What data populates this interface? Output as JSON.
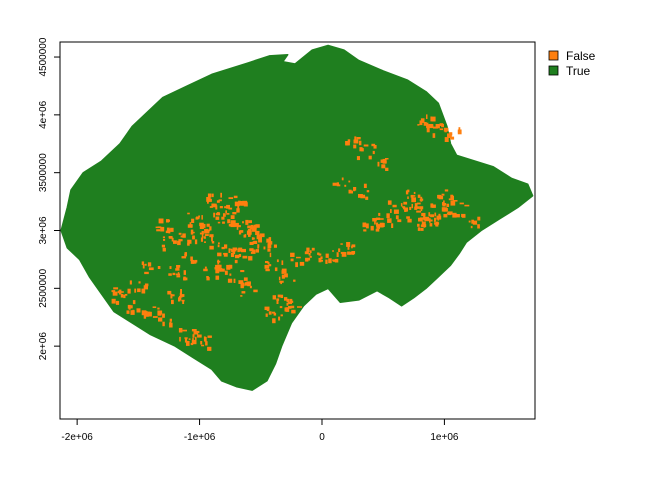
{
  "chart_data": {
    "type": "raster-map",
    "title": "",
    "xlabel": "",
    "ylabel": "",
    "xlim": [
      -2140000,
      1740000
    ],
    "ylim": [
      1370000,
      4630000
    ],
    "x_ticks": [
      {
        "value": -2000000,
        "label": "-2e+06"
      },
      {
        "value": -1000000,
        "label": "-1e+06"
      },
      {
        "value": 0,
        "label": "0"
      },
      {
        "value": 1000000,
        "label": "1e+06"
      }
    ],
    "y_ticks": [
      {
        "value": 2000000,
        "label": "2e+06"
      },
      {
        "value": 2500000,
        "label": "2500000"
      },
      {
        "value": 3000000,
        "label": "3e+06"
      },
      {
        "value": 3500000,
        "label": "3500000"
      },
      {
        "value": 4000000,
        "label": "4e+06"
      },
      {
        "value": 4500000,
        "label": "4500000"
      }
    ],
    "legend": {
      "position": "top-right",
      "items": [
        {
          "label": "False",
          "color": "#ff7f0e"
        },
        {
          "label": "True",
          "color": "#1f7f1f"
        }
      ]
    },
    "region_outline": [
      [
        -2130000,
        3000000
      ],
      [
        -2080000,
        3200000
      ],
      [
        -2050000,
        3350000
      ],
      [
        -1950000,
        3500000
      ],
      [
        -1800000,
        3600000
      ],
      [
        -1650000,
        3750000
      ],
      [
        -1550000,
        3900000
      ],
      [
        -1400000,
        4050000
      ],
      [
        -1300000,
        4150000
      ],
      [
        -1100000,
        4250000
      ],
      [
        -900000,
        4350000
      ],
      [
        -600000,
        4450000
      ],
      [
        -430000,
        4510000
      ],
      [
        -280000,
        4520000
      ],
      [
        -320000,
        4460000
      ],
      [
        -220000,
        4440000
      ],
      [
        -80000,
        4560000
      ],
      [
        50000,
        4600000
      ],
      [
        180000,
        4560000
      ],
      [
        300000,
        4470000
      ],
      [
        500000,
        4380000
      ],
      [
        700000,
        4300000
      ],
      [
        850000,
        4200000
      ],
      [
        950000,
        4100000
      ],
      [
        1020000,
        3900000
      ],
      [
        1050000,
        3750000
      ],
      [
        1100000,
        3650000
      ],
      [
        1250000,
        3600000
      ],
      [
        1400000,
        3550000
      ],
      [
        1550000,
        3450000
      ],
      [
        1680000,
        3400000
      ],
      [
        1720000,
        3300000
      ],
      [
        1600000,
        3200000
      ],
      [
        1450000,
        3100000
      ],
      [
        1300000,
        3000000
      ],
      [
        1180000,
        2900000
      ],
      [
        1120000,
        2800000
      ],
      [
        1050000,
        2700000
      ],
      [
        950000,
        2600000
      ],
      [
        850000,
        2500000
      ],
      [
        750000,
        2420000
      ],
      [
        650000,
        2350000
      ],
      [
        550000,
        2420000
      ],
      [
        450000,
        2480000
      ],
      [
        300000,
        2400000
      ],
      [
        150000,
        2380000
      ],
      [
        50000,
        2500000
      ],
      [
        -50000,
        2450000
      ],
      [
        -150000,
        2350000
      ],
      [
        -250000,
        2200000
      ],
      [
        -330000,
        2000000
      ],
      [
        -380000,
        1850000
      ],
      [
        -450000,
        1700000
      ],
      [
        -570000,
        1620000
      ],
      [
        -700000,
        1650000
      ],
      [
        -820000,
        1700000
      ],
      [
        -900000,
        1800000
      ],
      [
        -1050000,
        1900000
      ],
      [
        -1200000,
        2000000
      ],
      [
        -1400000,
        2100000
      ],
      [
        -1550000,
        2200000
      ],
      [
        -1700000,
        2300000
      ],
      [
        -1800000,
        2450000
      ],
      [
        -1900000,
        2600000
      ],
      [
        -1980000,
        2750000
      ],
      [
        -2080000,
        2850000
      ]
    ],
    "false_cells": [
      [
        -900000,
        3280000
      ],
      [
        -850000,
        3200000
      ],
      [
        -800000,
        3100000
      ],
      [
        -750000,
        3150000
      ],
      [
        -700000,
        3250000
      ],
      [
        -650000,
        3050000
      ],
      [
        -600000,
        2950000
      ],
      [
        -550000,
        3000000
      ],
      [
        -500000,
        2850000
      ],
      [
        -450000,
        2900000
      ],
      [
        -950000,
        3000000
      ],
      [
        -1000000,
        2950000
      ],
      [
        -1100000,
        2800000
      ],
      [
        -1150000,
        2950000
      ],
      [
        -1250000,
        2900000
      ],
      [
        -1300000,
        3050000
      ],
      [
        -1400000,
        2700000
      ],
      [
        -1500000,
        2550000
      ],
      [
        -1550000,
        2350000
      ],
      [
        -1650000,
        2450000
      ],
      [
        -1400000,
        2300000
      ],
      [
        -1300000,
        2250000
      ],
      [
        -1100000,
        2100000
      ],
      [
        -1000000,
        2050000
      ],
      [
        -1200000,
        2450000
      ],
      [
        -900000,
        2650000
      ],
      [
        -800000,
        2700000
      ],
      [
        -700000,
        2600000
      ],
      [
        -600000,
        2500000
      ],
      [
        -400000,
        2700000
      ],
      [
        -300000,
        2600000
      ],
      [
        -200000,
        2750000
      ],
      [
        -100000,
        2800000
      ],
      [
        -350000,
        2400000
      ],
      [
        -400000,
        2300000
      ],
      [
        -250000,
        2350000
      ],
      [
        50000,
        2800000
      ],
      [
        200000,
        2850000
      ],
      [
        400000,
        3050000
      ],
      [
        500000,
        3100000
      ],
      [
        600000,
        3200000
      ],
      [
        650000,
        3150000
      ],
      [
        700000,
        3250000
      ],
      [
        750000,
        3300000
      ],
      [
        800000,
        3150000
      ],
      [
        850000,
        3050000
      ],
      [
        900000,
        3100000
      ],
      [
        950000,
        3200000
      ],
      [
        1000000,
        3300000
      ],
      [
        1100000,
        3200000
      ],
      [
        1200000,
        3100000
      ],
      [
        850000,
        3950000
      ],
      [
        900000,
        3900000
      ],
      [
        250000,
        3800000
      ],
      [
        350000,
        3700000
      ],
      [
        450000,
        3600000
      ],
      [
        150000,
        3400000
      ],
      [
        300000,
        3350000
      ],
      [
        1050000,
        3850000
      ],
      [
        -750000,
        2850000
      ],
      [
        -650000,
        2800000
      ],
      [
        -850000,
        2850000
      ],
      [
        -1200000,
        2650000
      ],
      [
        -1050000,
        3100000
      ]
    ]
  }
}
